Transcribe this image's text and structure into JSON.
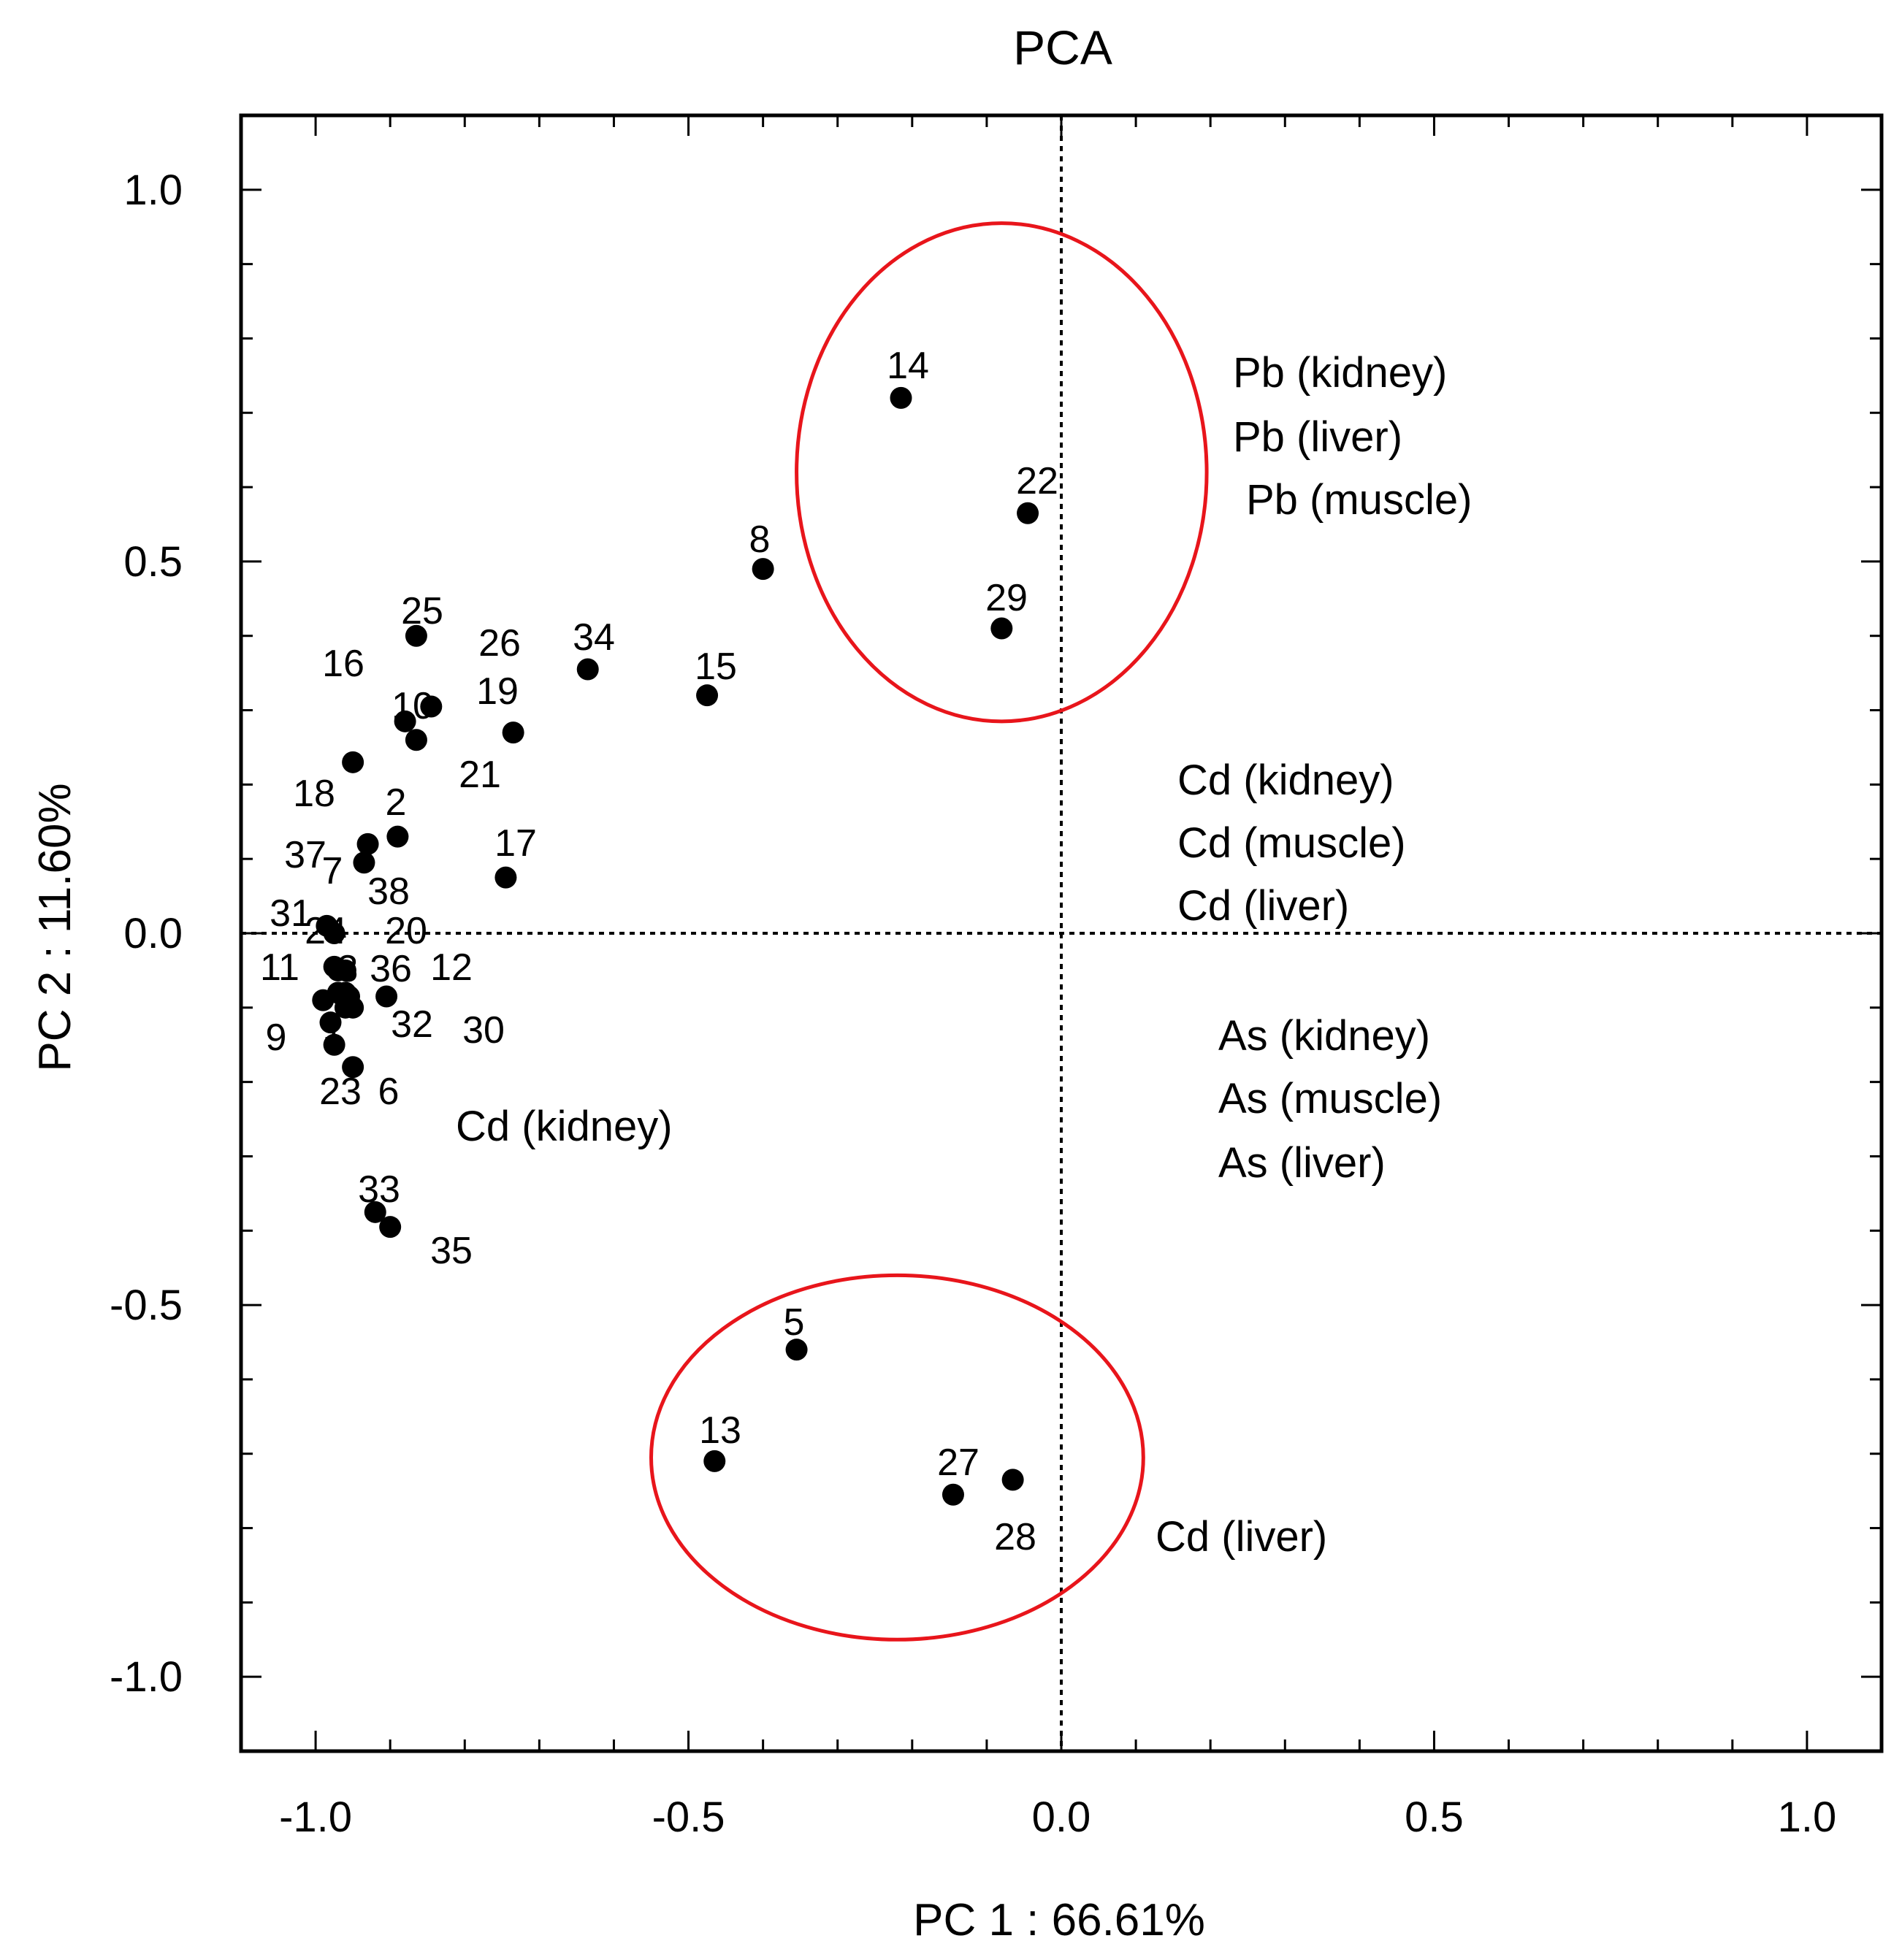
{
  "chart_data": {
    "type": "scatter",
    "title": "PCA",
    "xlabel": "PC 1 : 66.61%",
    "ylabel": "PC 2 : 11.60%",
    "xlim": [
      -1.1,
      1.1
    ],
    "ylim": [
      -1.1,
      1.1
    ],
    "x_ticks": [
      -1.0,
      -0.5,
      0.0,
      0.5,
      1.0
    ],
    "x_tick_labels": [
      "-1.0",
      "-0.5",
      "0.0",
      "0.5",
      "1.0"
    ],
    "y_ticks": [
      1.0,
      0.5,
      0.0,
      -0.5,
      -1.0
    ],
    "y_tick_labels": [
      "1.0",
      "0.5",
      "0.0",
      "-0.5",
      "-1.0"
    ],
    "reference_lines": {
      "x": 0,
      "y": 0,
      "style": "dotted"
    },
    "colors": {
      "points": "#000000",
      "ellipses": "#e8151b"
    },
    "points": [
      {
        "id": "1",
        "x": -0.98,
        "y": -0.12
      },
      {
        "id": "2",
        "x": -0.89,
        "y": 0.13
      },
      {
        "id": "3",
        "x": -0.96,
        "y": -0.08
      },
      {
        "id": "4",
        "x": -0.97,
        "y": -0.08
      },
      {
        "id": "5",
        "x": -0.355,
        "y": -0.56
      },
      {
        "id": "6",
        "x": -0.95,
        "y": -0.18
      },
      {
        "id": "7",
        "x": -0.935,
        "y": 0.095
      },
      {
        "id": "8",
        "x": -0.4,
        "y": 0.49
      },
      {
        "id": "9",
        "x": -0.99,
        "y": -0.09
      },
      {
        "id": "10",
        "x": -0.88,
        "y": 0.285
      },
      {
        "id": "11",
        "x": -0.975,
        "y": -0.045
      },
      {
        "id": "12",
        "x": -0.96,
        "y": -0.05
      },
      {
        "id": "13",
        "x": -0.465,
        "y": -0.71
      },
      {
        "id": "14",
        "x": -0.215,
        "y": 0.72
      },
      {
        "id": "15",
        "x": -0.475,
        "y": 0.32
      },
      {
        "id": "16",
        "x": -0.95,
        "y": 0.23
      },
      {
        "id": "17",
        "x": -0.745,
        "y": 0.075
      },
      {
        "id": "18",
        "x": -0.93,
        "y": 0.12
      },
      {
        "id": "19",
        "x": -0.735,
        "y": 0.27
      },
      {
        "id": "20",
        "x": -0.97,
        "y": -0.05
      },
      {
        "id": "21",
        "x": -0.865,
        "y": 0.26
      },
      {
        "id": "22",
        "x": -0.045,
        "y": 0.565
      },
      {
        "id": "23",
        "x": -0.975,
        "y": -0.15
      },
      {
        "id": "24",
        "x": -0.975,
        "y": 0.0
      },
      {
        "id": "25",
        "x": -0.865,
        "y": 0.4
      },
      {
        "id": "26",
        "x": -0.845,
        "y": 0.305
      },
      {
        "id": "27",
        "x": -0.145,
        "y": -0.755
      },
      {
        "id": "28",
        "x": -0.065,
        "y": -0.735
      },
      {
        "id": "29",
        "x": -0.08,
        "y": 0.41
      },
      {
        "id": "30",
        "x": -0.95,
        "y": -0.1
      },
      {
        "id": "31",
        "x": -0.985,
        "y": 0.01
      },
      {
        "id": "32",
        "x": -0.905,
        "y": -0.085
      },
      {
        "id": "33",
        "x": -0.92,
        "y": -0.375
      },
      {
        "id": "34",
        "x": -0.635,
        "y": 0.355
      },
      {
        "id": "35",
        "x": -0.9,
        "y": -0.395
      },
      {
        "id": "36",
        "x": -0.955,
        "y": -0.085
      },
      {
        "id": "37",
        "x": -0.96,
        "y": -0.09
      },
      {
        "id": "38",
        "x": -0.96,
        "y": -0.1
      }
    ],
    "point_label_text": [
      "14",
      "22",
      "8",
      "29",
      "25",
      "26",
      "34",
      "16",
      "15",
      "19",
      "10",
      "21",
      "18",
      "2",
      "17",
      "37",
      "7",
      "38",
      "31",
      "24",
      "20",
      "11",
      "3",
      "36",
      "12",
      "32",
      "30",
      "9",
      "1",
      "23",
      "6",
      "33",
      "35",
      "5",
      "13",
      "27",
      "28"
    ],
    "variable_labels": [
      "Pb (kidney)",
      "Pb (liver)",
      "Pb (muscle)",
      "Cd (kidney)",
      "Cd (muscle)",
      "Cd (liver)",
      "As (kidney)",
      "As (muscle)",
      "As (liver)",
      "Cd (kidney)",
      "Cd (liver)"
    ],
    "ellipses": [
      {
        "cx": -0.08,
        "cy": 0.62,
        "rx": 0.275,
        "ry": 0.335
      },
      {
        "cx": -0.22,
        "cy": -0.705,
        "rx": 0.33,
        "ry": 0.245
      }
    ]
  }
}
